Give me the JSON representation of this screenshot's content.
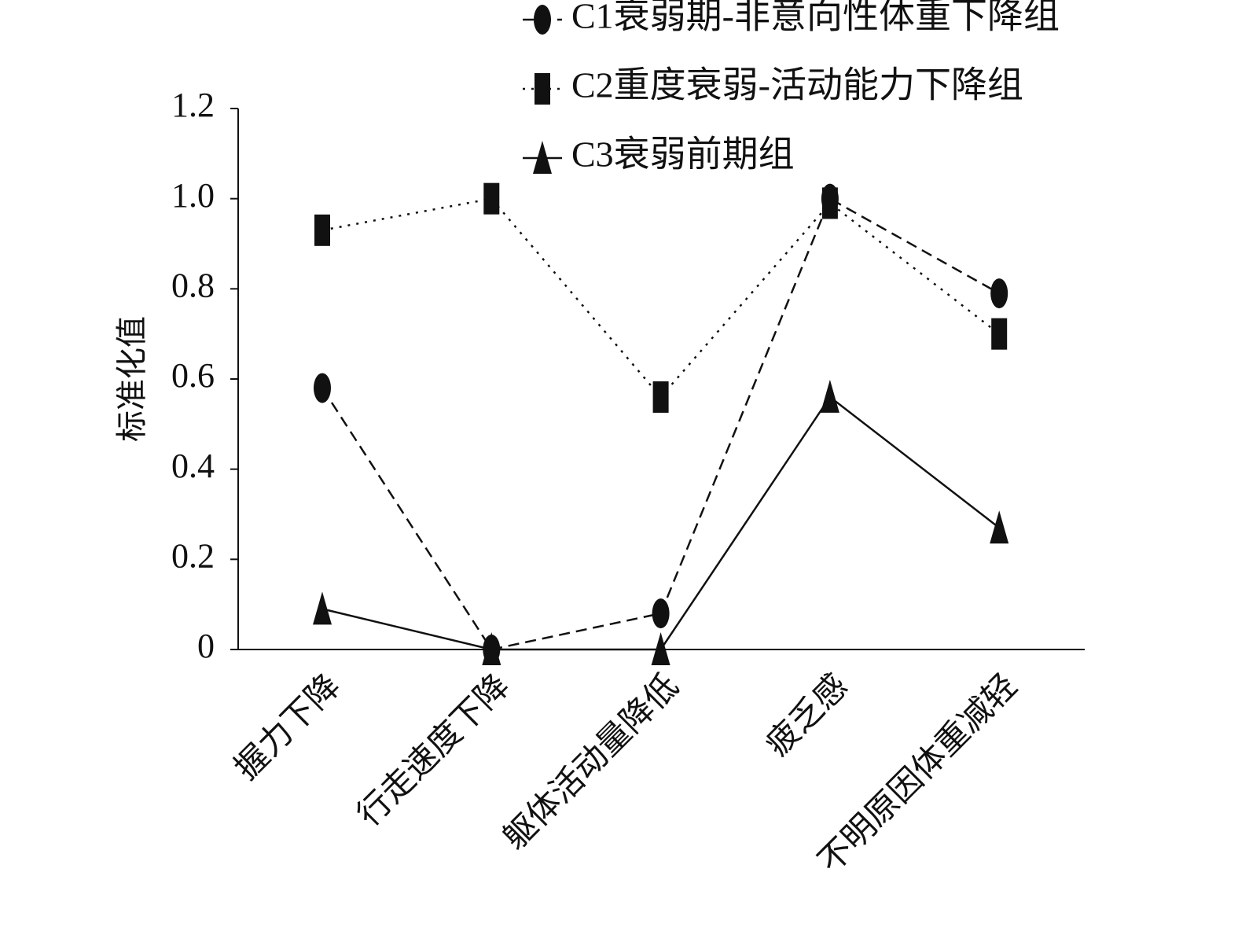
{
  "chart_data": {
    "type": "line",
    "y_label": "标准化值",
    "categories": [
      "握力下降",
      "行走速度下降",
      "躯体活动量降低",
      "疲乏感",
      "不明原因体重减轻"
    ],
    "series": [
      {
        "name": "C1衰弱期-非意向性体重下降组",
        "color": "#111111",
        "line_style": "dashed",
        "marker": "ellipse",
        "values": [
          0.58,
          0,
          0.08,
          1.0,
          0.79
        ]
      },
      {
        "name": "C2重度衰弱-活动能力下降组",
        "color": "#111111",
        "line_style": "dotted",
        "marker": "square",
        "values": [
          0.93,
          1.0,
          0.56,
          0.99,
          0.7
        ]
      },
      {
        "name": "C3衰弱前期组",
        "color": "#111111",
        "line_style": "solid",
        "marker": "triangle",
        "values": [
          0.09,
          0,
          0,
          0.56,
          0.27
        ]
      }
    ],
    "ylim": [
      0,
      1.2
    ],
    "yticks": [
      0,
      0.2,
      0.4,
      0.6,
      0.8,
      {
        "value": 1.0,
        "label": "1.0"
      },
      1.2
    ],
    "legend": "top-right"
  }
}
